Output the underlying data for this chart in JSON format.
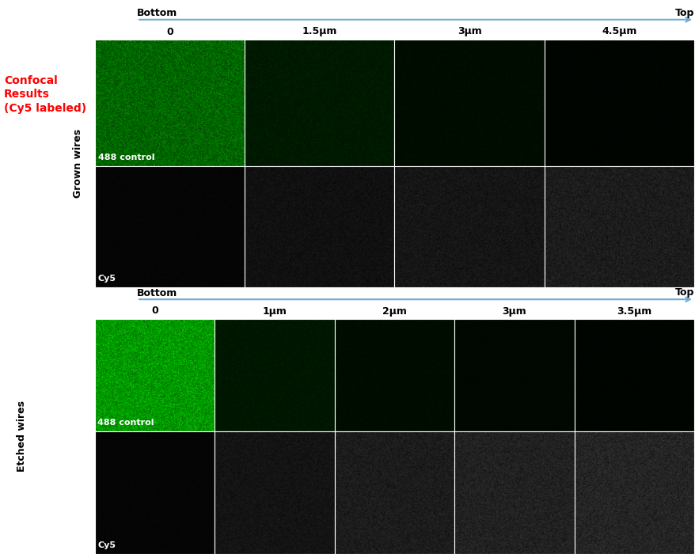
{
  "title_text": "Confocal\nResults\n(Cy5 labeled)",
  "title_color": "#ff0000",
  "bg_color": "#ffffff",
  "section1": {
    "label": "Grown wires",
    "arrow_label_left": "Bottom",
    "arrow_label_right": "Top",
    "columns": [
      "0",
      "1.5μm",
      "3μm",
      "4.5μm"
    ],
    "rows": [
      "488 control",
      "Cy5"
    ],
    "row0_green_levels": [
      0.4,
      0.1,
      0.05,
      0.02
    ],
    "row1_gray_levels": [
      0.03,
      0.1,
      0.13,
      0.17
    ]
  },
  "section2": {
    "label": "Etched wires",
    "arrow_label_left": "Bottom",
    "arrow_label_right": "Top",
    "columns": [
      "0",
      "1μm",
      "2μm",
      "3μm",
      "3.5μm"
    ],
    "rows": [
      "488 control",
      "Cy5"
    ],
    "row0_green_levels": [
      0.6,
      0.09,
      0.05,
      0.03,
      0.02
    ],
    "row1_gray_levels": [
      0.03,
      0.12,
      0.17,
      0.2,
      0.22
    ]
  },
  "noise_seed": 42,
  "image_size": 200,
  "arrow_color": "#6baed6"
}
